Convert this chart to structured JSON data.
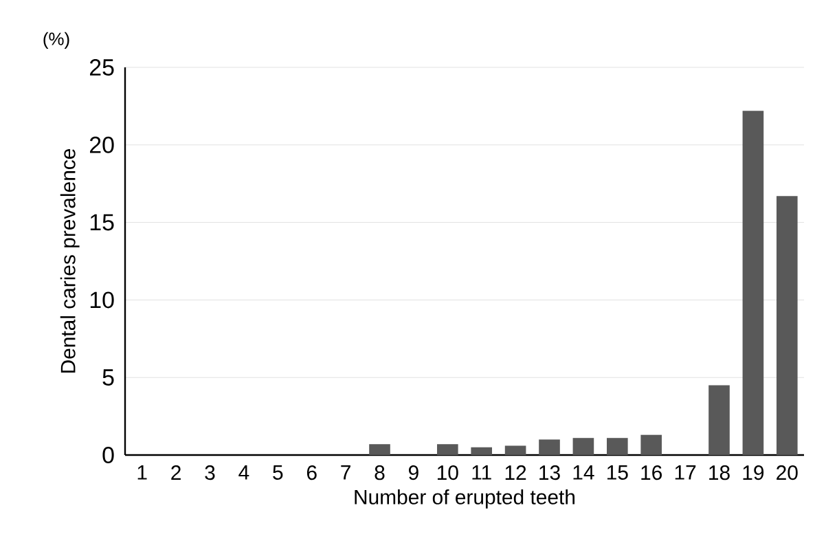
{
  "chart_data": {
    "type": "bar",
    "xlabel": "Number of erupted teeth",
    "ylabel": "Dental caries prevalence",
    "annotations": [
      "(%)"
    ],
    "categories": [
      "1",
      "2",
      "3",
      "4",
      "5",
      "6",
      "7",
      "8",
      "9",
      "10",
      "11",
      "12",
      "13",
      "14",
      "15",
      "16",
      "17",
      "18",
      "19",
      "20"
    ],
    "values": [
      0,
      0,
      0,
      0,
      0,
      0,
      0,
      0.7,
      0,
      0.7,
      0.5,
      0.6,
      1.0,
      1.1,
      1.1,
      1.3,
      0,
      4.5,
      22.2,
      16.7
    ],
    "color": "#595959",
    "ylim": [
      0,
      25
    ],
    "yticks": [
      0,
      5,
      10,
      15,
      20,
      25
    ],
    "grid": "y"
  }
}
